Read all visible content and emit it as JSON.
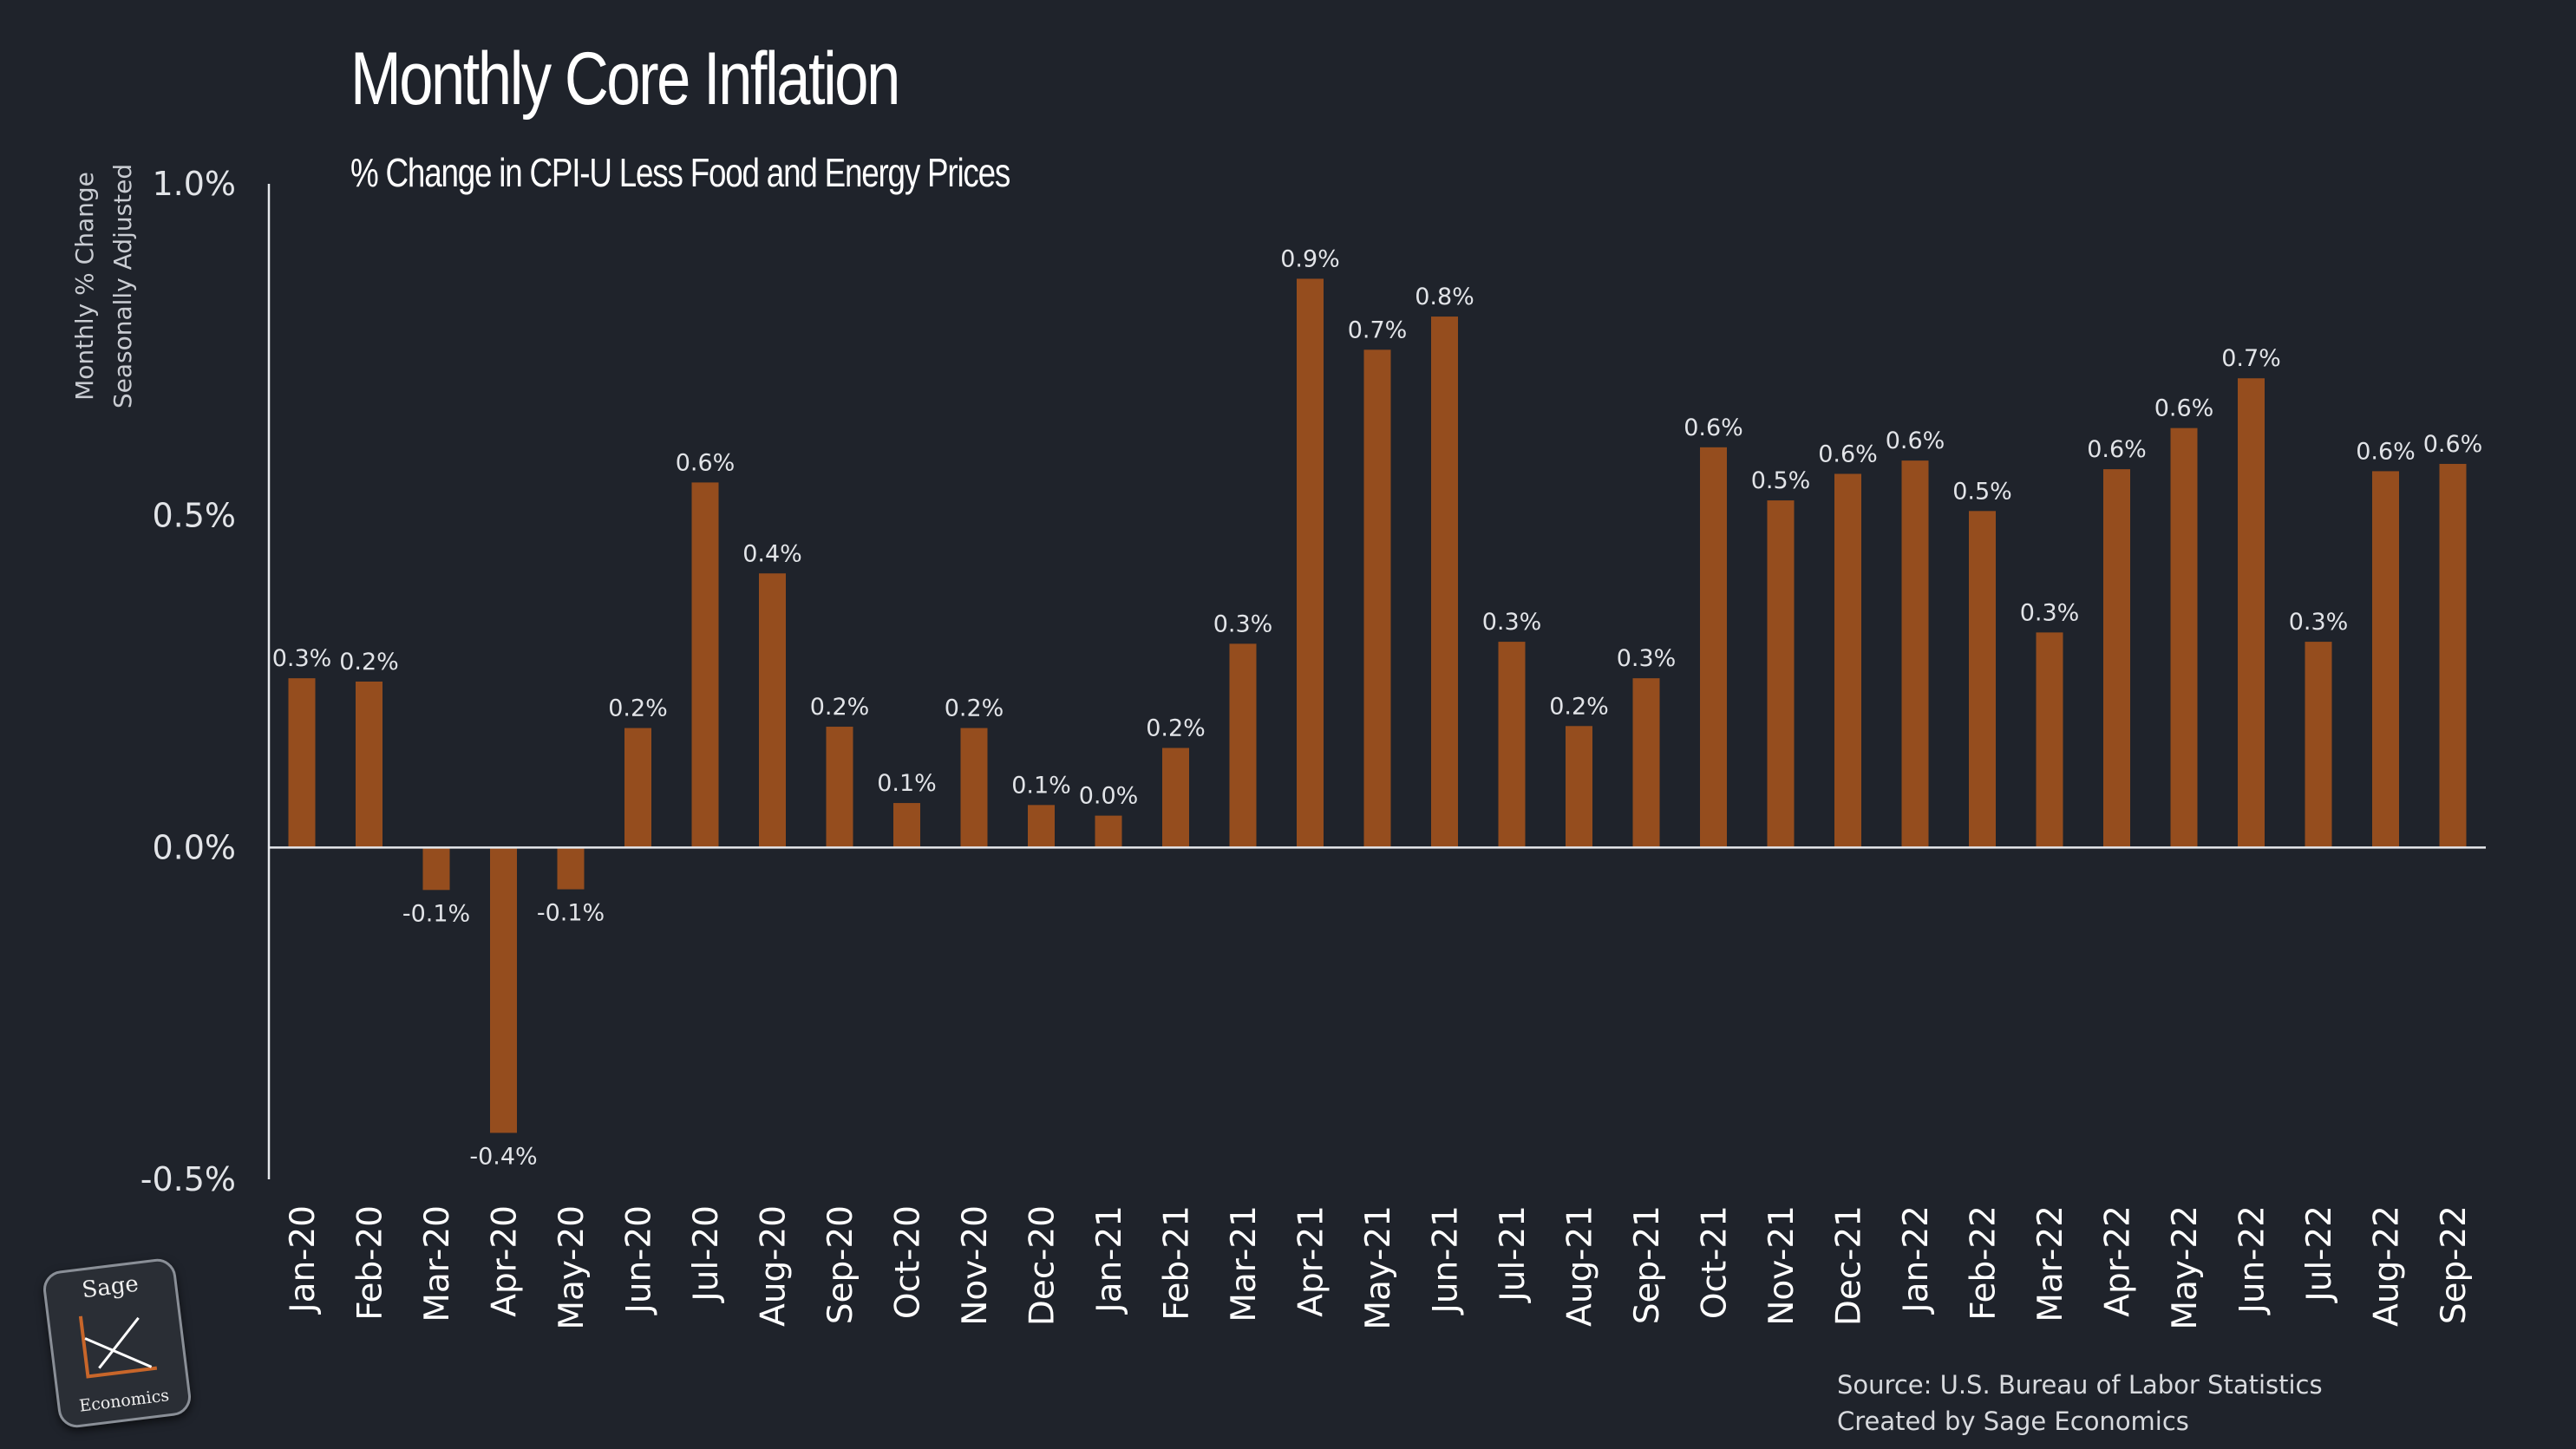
{
  "chart_data": {
    "type": "bar",
    "title": "Monthly Core Inflation",
    "subtitle": "% Change in CPI-U Less Food and Energy Prices",
    "ylabel_lines": [
      "Monthly % Change",
      "Seasonally Adjusted"
    ],
    "ylim": [
      -0.5,
      1.0
    ],
    "yticks": [
      {
        "value": 1.0,
        "label": "1.0%"
      },
      {
        "value": 0.5,
        "label": "0.5%"
      },
      {
        "value": 0.0,
        "label": "0.0%"
      },
      {
        "value": -0.5,
        "label": "-0.5%"
      }
    ],
    "grid": false,
    "bar_color": "#954d1e",
    "background_color": "#1f232b",
    "categories": [
      "Jan-20",
      "Feb-20",
      "Mar-20",
      "Apr-20",
      "May-20",
      "Jun-20",
      "Jul-20",
      "Aug-20",
      "Sep-20",
      "Oct-20",
      "Nov-20",
      "Dec-20",
      "Jan-21",
      "Feb-21",
      "Mar-21",
      "Apr-21",
      "May-21",
      "Jun-21",
      "Jul-21",
      "Aug-21",
      "Sep-21",
      "Oct-21",
      "Nov-21",
      "Dec-21",
      "Jan-22",
      "Feb-22",
      "Mar-22",
      "Apr-22",
      "May-22",
      "Jun-22",
      "Jul-22",
      "Aug-22",
      "Sep-22"
    ],
    "values": [
      0.255,
      0.25,
      -0.064,
      -0.43,
      -0.063,
      0.18,
      0.55,
      0.413,
      0.182,
      0.067,
      0.18,
      0.064,
      0.048,
      0.15,
      0.307,
      0.857,
      0.75,
      0.8,
      0.31,
      0.183,
      0.255,
      0.603,
      0.523,
      0.563,
      0.583,
      0.507,
      0.324,
      0.57,
      0.632,
      0.707,
      0.31,
      0.567,
      0.578
    ],
    "data_labels": [
      "0.3%",
      "0.2%",
      "-0.1%",
      "-0.4%",
      "-0.1%",
      "0.2%",
      "0.6%",
      "0.4%",
      "0.2%",
      "0.1%",
      "0.2%",
      "0.1%",
      "0.0%",
      "0.2%",
      "0.3%",
      "0.9%",
      "0.7%",
      "0.8%",
      "0.3%",
      "0.2%",
      "0.3%",
      "0.6%",
      "0.5%",
      "0.6%",
      "0.6%",
      "0.5%",
      "0.3%",
      "0.6%",
      "0.6%",
      "0.7%",
      "0.3%",
      "0.6%",
      "0.6%"
    ]
  },
  "source_lines": [
    "Source: U.S. Bureau of Labor Statistics",
    "Created by Sage Economics"
  ],
  "logo": {
    "top_text": "Sage",
    "bottom_text": "Economics",
    "accent_color": "#c8662a"
  }
}
